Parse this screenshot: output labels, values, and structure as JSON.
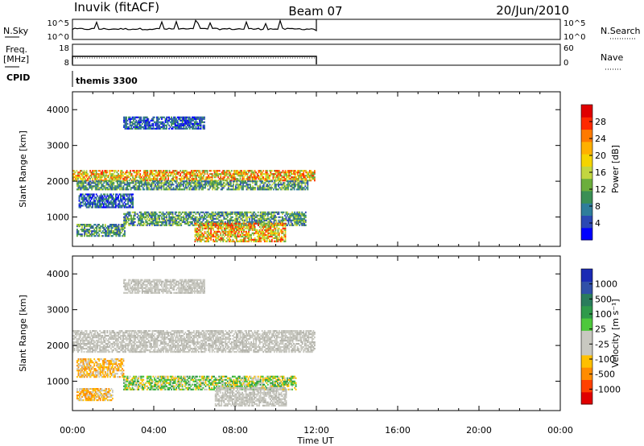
{
  "header": {
    "station": "Inuvik (fitACF)",
    "beam": "Beam 07",
    "date": "20/Jun/2010"
  },
  "top_panels": {
    "nsky_label": "N.Sky",
    "nsky_ticks": [
      "10^5",
      "10^0"
    ],
    "nsearch_label": "N.Search",
    "nsearch_ticks": [
      "10^5",
      "10^0"
    ],
    "freq_label": "Freq.",
    "freq_unit": "[MHz]",
    "freq_ticks": [
      "18",
      "8"
    ],
    "nave_label": "Nave",
    "nave_ticks": [
      "60",
      "0"
    ],
    "cpid_label": "CPID",
    "cpid_value": "themis 3300"
  },
  "chart_data": [
    {
      "type": "heatmap",
      "name": "power",
      "ylabel": "Slant Range [km]",
      "xlabel": "",
      "x_ticks": [
        "00:00",
        "04:00",
        "08:00",
        "12:00",
        "16:00",
        "20:00",
        "00:00"
      ],
      "y_ticks": [
        1000,
        2000,
        3000,
        4000
      ],
      "xlim_hours": [
        0,
        24
      ],
      "ylim_km": [
        180,
        4500
      ],
      "colorbar": {
        "label": "Power [dB]",
        "ticks": [
          "28",
          "24",
          "20",
          "16",
          "12",
          "8",
          "4"
        ],
        "colors": [
          "#0000ff",
          "#2b48b4",
          "#2f7d9b",
          "#3a8f55",
          "#6cae3c",
          "#c2d640",
          "#f5d400",
          "#ffb000",
          "#ff7a00",
          "#ff2a00",
          "#e00000"
        ]
      },
      "data_end_hours": 12.0,
      "bands": [
        {
          "x0": 0.0,
          "x1": 11.9,
          "y0": 2000,
          "y1": 2300,
          "level": "high"
        },
        {
          "x0": 0.2,
          "x1": 11.6,
          "y0": 1750,
          "y1": 2000,
          "level": "mid"
        },
        {
          "x0": 0.3,
          "x1": 3.0,
          "y0": 1250,
          "y1": 1650,
          "level": "low"
        },
        {
          "x0": 0.2,
          "x1": 2.6,
          "y0": 450,
          "y1": 800,
          "level": "mid"
        },
        {
          "x0": 2.5,
          "x1": 11.5,
          "y0": 750,
          "y1": 1150,
          "level": "mid"
        },
        {
          "x0": 6.0,
          "x1": 10.5,
          "y0": 300,
          "y1": 800,
          "level": "high"
        },
        {
          "x0": 2.5,
          "x1": 6.5,
          "y0": 3450,
          "y1": 3800,
          "level": "low"
        }
      ]
    },
    {
      "type": "heatmap",
      "name": "velocity",
      "ylabel": "Slant Range [km]",
      "xlabel": "Time UT",
      "x_ticks": [
        "00:00",
        "04:00",
        "08:00",
        "12:00",
        "16:00",
        "20:00",
        "00:00"
      ],
      "y_ticks": [
        1000,
        2000,
        3000,
        4000
      ],
      "xlim_hours": [
        0,
        24
      ],
      "ylim_km": [
        180,
        4500
      ],
      "colorbar": {
        "label": "Velocity [m s⁻¹]",
        "ticks": [
          "1000",
          "500",
          "100",
          "25",
          "-25",
          "-100",
          "-500",
          "-1000"
        ],
        "colors": [
          "#e00000",
          "#ff4000",
          "#ff8c00",
          "#ffc000",
          "#c8c8c0",
          "#c8c8c0",
          "#4ec83c",
          "#2f9a4a",
          "#2a7c5c",
          "#3050a8",
          "#1a2ab4"
        ]
      },
      "data_end_hours": 12.0,
      "bands": [
        {
          "x0": 0.0,
          "x1": 11.9,
          "y0": 1800,
          "y1": 2400,
          "level": "ground"
        },
        {
          "x0": 0.2,
          "x1": 2.5,
          "y0": 1100,
          "y1": 1600,
          "level": "neg"
        },
        {
          "x0": 2.5,
          "x1": 11.0,
          "y0": 750,
          "y1": 1150,
          "level": "pos"
        },
        {
          "x0": 0.2,
          "x1": 2.0,
          "y0": 450,
          "y1": 800,
          "level": "neg"
        },
        {
          "x0": 7.0,
          "x1": 10.5,
          "y0": 300,
          "y1": 800,
          "level": "ground"
        },
        {
          "x0": 2.5,
          "x1": 6.5,
          "y0": 3450,
          "y1": 3850,
          "level": "ground"
        }
      ]
    }
  ]
}
